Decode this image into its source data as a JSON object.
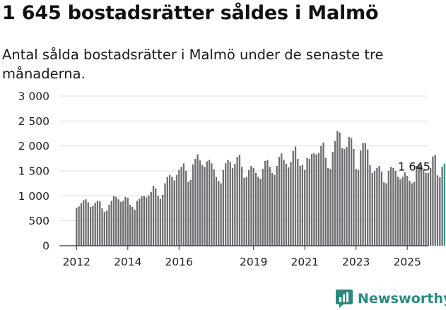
{
  "title": "1 645 bostadsrätter såldes i Malmö",
  "subtitle": "Antal sålda bostadsrätter i Malmö under de senaste tre månaderna.",
  "brand": {
    "name": "Newsworthy",
    "icon": "newsworthy-chart-icon",
    "color": "#2a8a80"
  },
  "colors": {
    "bar": "#6e6d72",
    "highlight": "#2a9a8e",
    "grid": "#dddddd"
  },
  "chart_data": {
    "type": "bar",
    "title": "1 645 bostadsrätter såldes i Malmö",
    "xlabel": "",
    "ylabel": "",
    "ylim": [
      0,
      3000
    ],
    "yticks": [
      "0",
      "500",
      "1 000",
      "1 500",
      "2 000",
      "2 500",
      "3 000"
    ],
    "yticks_values": [
      0,
      500,
      1000,
      1500,
      2000,
      2500,
      3000
    ],
    "xticks": [
      "2012",
      "2014",
      "2016",
      "2019",
      "2021",
      "2023",
      "2025"
    ],
    "xtick_index": [
      0,
      22,
      44,
      76,
      98,
      120,
      142
    ],
    "grid": true,
    "annotation": {
      "label": "1 645",
      "index": 145
    },
    "values": [
      760,
      790,
      850,
      910,
      930,
      870,
      780,
      800,
      860,
      900,
      890,
      750,
      680,
      700,
      820,
      900,
      1000,
      980,
      930,
      880,
      900,
      980,
      960,
      820,
      780,
      720,
      900,
      940,
      990,
      1000,
      970,
      1010,
      1080,
      1200,
      1150,
      1000,
      940,
      1020,
      1250,
      1380,
      1420,
      1380,
      1310,
      1420,
      1520,
      1580,
      1650,
      1500,
      1280,
      1320,
      1630,
      1740,
      1830,
      1710,
      1620,
      1580,
      1690,
      1720,
      1650,
      1530,
      1380,
      1300,
      1250,
      1520,
      1650,
      1720,
      1680,
      1560,
      1640,
      1780,
      1820,
      1580,
      1360,
      1380,
      1520,
      1600,
      1560,
      1460,
      1380,
      1340,
      1540,
      1700,
      1720,
      1580,
      1460,
      1420,
      1600,
      1780,
      1850,
      1720,
      1640,
      1570,
      1680,
      1900,
      1990,
      1740,
      1600,
      1620,
      1520,
      1760,
      1740,
      1840,
      1850,
      1830,
      1860,
      2000,
      2070,
      1760,
      1560,
      1540,
      1880,
      2100,
      2300,
      2270,
      1960,
      1940,
      1980,
      2180,
      2160,
      1940,
      1540,
      1520,
      1910,
      2060,
      2060,
      1930,
      1620,
      1460,
      1500,
      1560,
      1600,
      1480,
      1270,
      1250,
      1500,
      1580,
      1560,
      1500,
      1380,
      1330,
      1380,
      1470,
      1400,
      1300,
      1250,
      1280,
      1600,
      1640,
      1620,
      1540,
      1460,
      1460,
      1560,
      1790,
      1820,
      1410,
      1370,
      1580,
      1645
    ]
  }
}
